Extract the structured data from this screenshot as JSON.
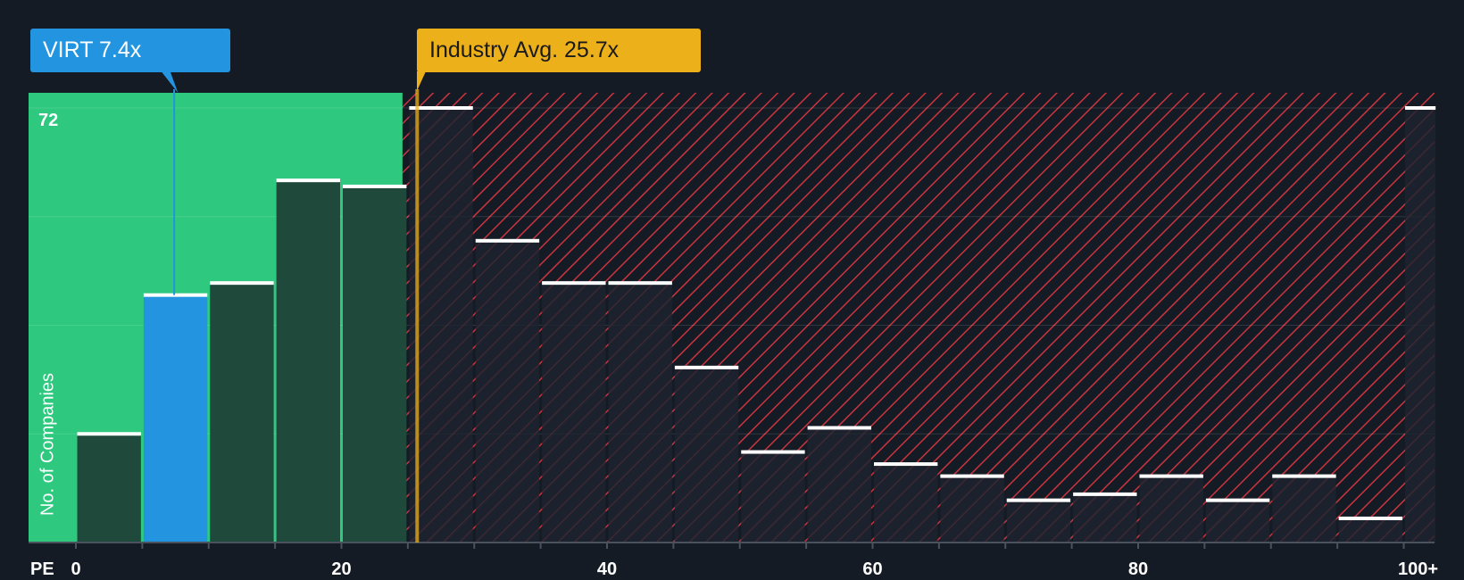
{
  "chart_data": {
    "type": "bar",
    "title": "",
    "xlabel": "PE",
    "ylabel": "No. of Companies",
    "ylim": [
      0,
      72
    ],
    "y_max_label": "72",
    "bin_width": 5,
    "bins": [
      {
        "from": 0,
        "to": 5,
        "value": 18,
        "highlight": false
      },
      {
        "from": 5,
        "to": 10,
        "value": 41,
        "highlight": true
      },
      {
        "from": 10,
        "to": 15,
        "value": 43,
        "highlight": false
      },
      {
        "from": 15,
        "to": 20,
        "value": 60,
        "highlight": false
      },
      {
        "from": 20,
        "to": 25,
        "value": 59,
        "highlight": false
      },
      {
        "from": 25,
        "to": 30,
        "value": 72,
        "highlight": false
      },
      {
        "from": 30,
        "to": 35,
        "value": 50,
        "highlight": false
      },
      {
        "from": 35,
        "to": 40,
        "value": 43,
        "highlight": false
      },
      {
        "from": 40,
        "to": 45,
        "value": 43,
        "highlight": false
      },
      {
        "from": 45,
        "to": 50,
        "value": 29,
        "highlight": false
      },
      {
        "from": 50,
        "to": 55,
        "value": 15,
        "highlight": false
      },
      {
        "from": 55,
        "to": 60,
        "value": 19,
        "highlight": false
      },
      {
        "from": 60,
        "to": 65,
        "value": 13,
        "highlight": false
      },
      {
        "from": 65,
        "to": 70,
        "value": 11,
        "highlight": false
      },
      {
        "from": 70,
        "to": 75,
        "value": 7,
        "highlight": false
      },
      {
        "from": 75,
        "to": 80,
        "value": 8,
        "highlight": false
      },
      {
        "from": 80,
        "to": 85,
        "value": 11,
        "highlight": false
      },
      {
        "from": 85,
        "to": 90,
        "value": 7,
        "highlight": false
      },
      {
        "from": 90,
        "to": 95,
        "value": 11,
        "highlight": false
      },
      {
        "from": 95,
        "to": 100,
        "value": 4,
        "highlight": false
      },
      {
        "from": 100,
        "to": 102.5,
        "value": 72,
        "highlight": false
      }
    ],
    "x_ticks": [
      {
        "value": 0,
        "label": "0"
      },
      {
        "value": 20,
        "label": "20"
      },
      {
        "value": 40,
        "label": "40"
      },
      {
        "value": 60,
        "label": "60"
      },
      {
        "value": 80,
        "label": "80"
      },
      {
        "value": 100,
        "label": "100+"
      }
    ],
    "x_domain": [
      -3.6,
      102.5
    ],
    "company": {
      "ticker": "VIRT",
      "pe": 7.4,
      "label": "VIRT 7.4x"
    },
    "industry": {
      "pe": 25.7,
      "label": "Industry Avg. 25.7x"
    },
    "fair_region_end": 24.6,
    "colors": {
      "background": "#151b24",
      "fair_region": "#2ec97f",
      "bar_fair": "#1f4a3b",
      "bar_highlight": "#2394e0",
      "bar_over": "#1e2430",
      "hatch": "#c9343f",
      "bar_cap": "#ffffff",
      "industry_line": "#ecb01a"
    }
  }
}
